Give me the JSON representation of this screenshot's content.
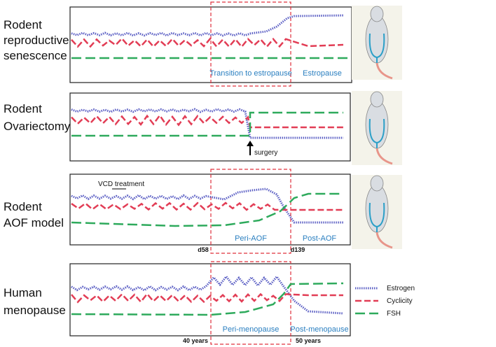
{
  "panels": [
    {
      "label_lines": [
        "Rodent",
        "reproductive",
        "senescence"
      ],
      "annotations": [
        "Transition to estropause",
        "Estropause"
      ]
    },
    {
      "label_lines": [
        "Rodent",
        "Ovariectomy"
      ],
      "annotations": [
        "surgery"
      ]
    },
    {
      "label_lines": [
        "Rodent",
        "AOF model"
      ],
      "annotations": [
        "VCD treatment",
        "Peri-AOF",
        "Post-AOF",
        "d58",
        "d139"
      ]
    },
    {
      "label_lines": [
        "Human",
        "menopause"
      ],
      "annotations": [
        "Peri-menopause",
        "Post-menopause",
        "40 years",
        "50 years"
      ]
    }
  ],
  "legend": [
    "Estrogen",
    "Cyclicity",
    "FSH"
  ]
}
